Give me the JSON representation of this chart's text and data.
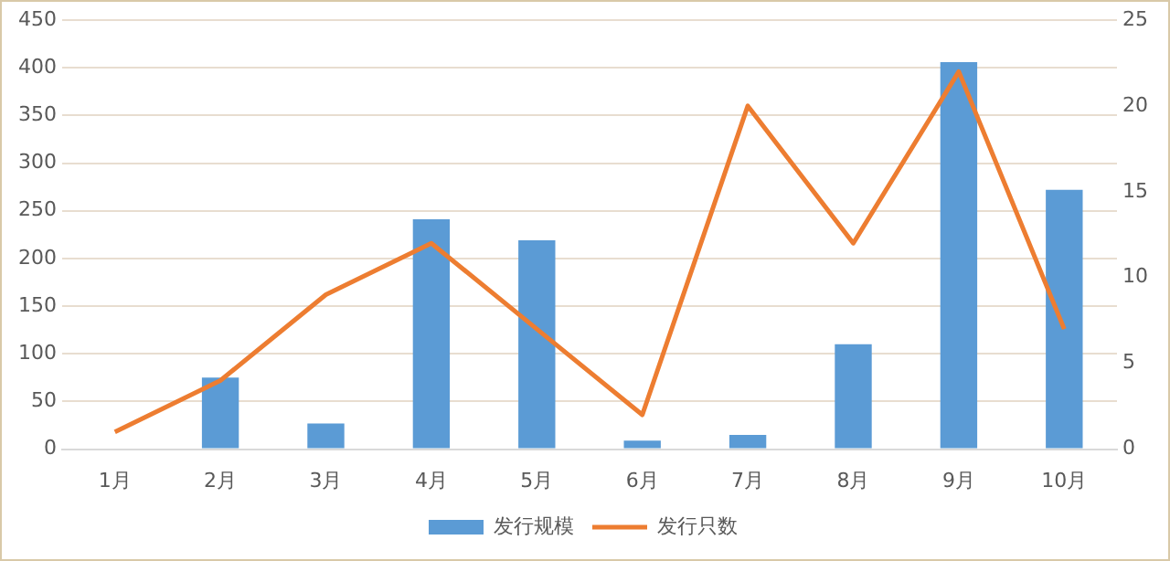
{
  "chart_data": {
    "type": "bar",
    "categories": [
      "1月",
      "2月",
      "3月",
      "4月",
      "5月",
      "6月",
      "7月",
      "8月",
      "9月",
      "10月"
    ],
    "series": [
      {
        "name": "发行规模",
        "color": "#5b9bd5",
        "values": [
          null,
          75,
          27,
          241,
          219,
          9,
          15,
          110,
          406,
          272
        ]
      },
      {
        "name": "发行只数",
        "type": "line",
        "axis": "y2",
        "color": "#ed7d31",
        "values": [
          1,
          4,
          9,
          12,
          7,
          2,
          20,
          12,
          22,
          7
        ]
      }
    ],
    "ylim": [
      0,
      450
    ],
    "yticks": [
      0,
      50,
      100,
      150,
      200,
      250,
      300,
      350,
      400,
      450
    ],
    "y2lim": [
      0,
      25
    ],
    "y2ticks": [
      0,
      5,
      10,
      15,
      20,
      25
    ],
    "grid": "y",
    "legend": "bottom",
    "marker": "none",
    "line_style": "solid"
  }
}
